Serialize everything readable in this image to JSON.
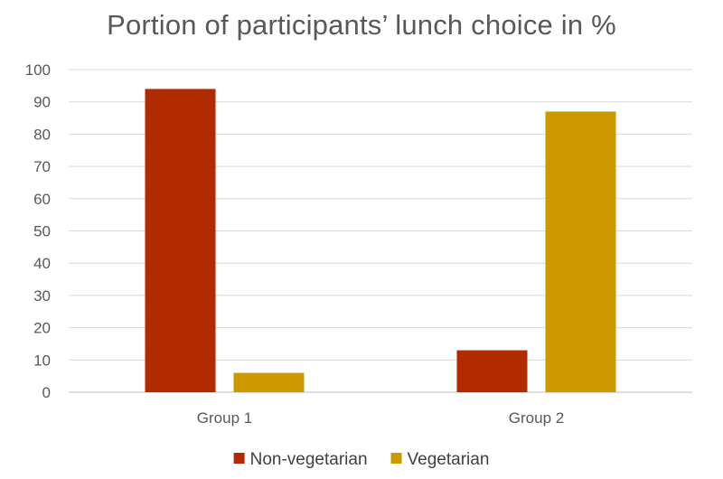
{
  "chart_data": {
    "type": "bar",
    "title": "Portion of participants’ lunch choice in %",
    "categories": [
      "Group 1",
      "Group 2"
    ],
    "series": [
      {
        "name": "Non-vegetarian",
        "values": [
          94,
          13
        ],
        "color": "#b22a00"
      },
      {
        "name": "Vegetarian",
        "values": [
          6,
          87
        ],
        "color": "#cc9900"
      }
    ],
    "ylim": [
      0,
      100
    ],
    "yticks": [
      0,
      10,
      20,
      30,
      40,
      50,
      60,
      70,
      80,
      90,
      100
    ],
    "grid": true,
    "legend_position": "bottom"
  }
}
